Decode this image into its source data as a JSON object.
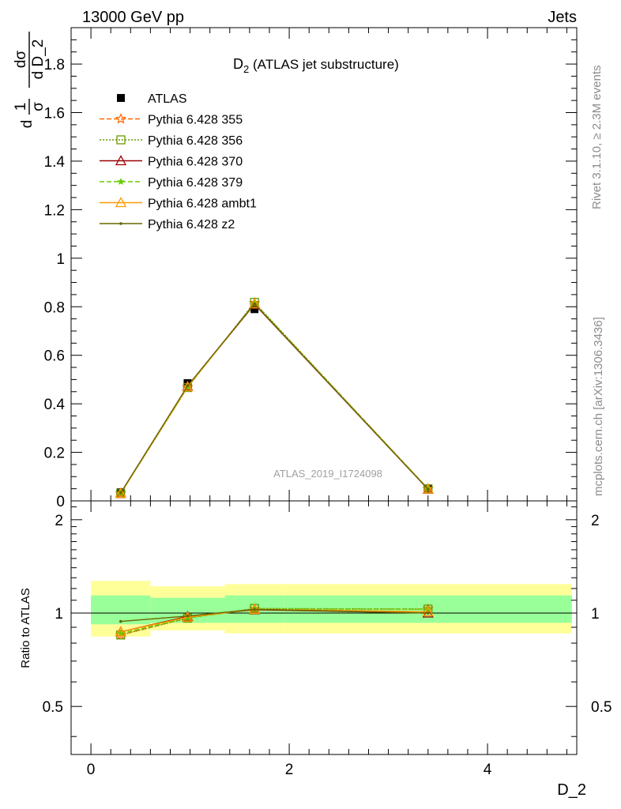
{
  "header": {
    "left": "13000 GeV pp",
    "right": "Jets"
  },
  "side_labels": {
    "rivet": "Rivet 3.1.10, ≥ 2.3M events",
    "mcplots": "mcplots.cern.ch [arXiv:1306.3436]"
  },
  "watermark": "ATLAS_2019_I1724098",
  "colors": {
    "band_inner": "#99ff99",
    "band_outer": "#ffff99",
    "data": "#000000"
  },
  "chart_data": [
    {
      "type": "scatter",
      "panel": "main",
      "title_main": "D",
      "title_sub": "2",
      "title_rest": " (ATLAS jet substructure)",
      "ylabel": "1/σ dσ/d D_2",
      "ylabel_parts": {
        "num_left": "1",
        "den_left": "σ",
        "num_right": "dσ",
        "den_right": "d D_2"
      },
      "xlim": [
        -0.2,
        4.9
      ],
      "ylim": [
        0,
        1.95
      ],
      "y_ticks": [
        "0",
        "0.2",
        "0.4",
        "0.6",
        "0.8",
        "1",
        "1.2",
        "1.4",
        "1.6",
        "1.8"
      ],
      "x": [
        0.3,
        0.975,
        1.65,
        3.4
      ],
      "x_bins": [
        [
          0.0,
          0.6
        ],
        [
          0.6,
          1.35
        ],
        [
          1.35,
          1.95
        ],
        [
          1.95,
          4.85
        ]
      ],
      "legend_placement": "top-left",
      "series": [
        {
          "name": "ATLAS",
          "marker": "square-filled",
          "color": "#000000",
          "dash": "none",
          "values": [
            0.035,
            0.485,
            0.79,
            0.048
          ]
        },
        {
          "name": "Pythia 6.428 355",
          "marker": "star-open",
          "color": "#ff6600",
          "dash": "6,3",
          "values": [
            0.031,
            0.469,
            0.815,
            0.05
          ]
        },
        {
          "name": "Pythia 6.428 356",
          "marker": "square-open",
          "color": "#669900",
          "dash": "2,2",
          "values": [
            0.03,
            0.467,
            0.818,
            0.05
          ]
        },
        {
          "name": "Pythia 6.428 370",
          "marker": "triangle-open",
          "color": "#990000",
          "dash": "none",
          "values": [
            0.031,
            0.472,
            0.81,
            0.048
          ]
        },
        {
          "name": "Pythia 6.428 379",
          "marker": "star-filled",
          "color": "#66cc00",
          "dash": "6,3",
          "values": [
            0.031,
            0.469,
            0.815,
            0.05
          ]
        },
        {
          "name": "Pythia 6.428 ambt1",
          "marker": "triangle-open",
          "color": "#ff9900",
          "dash": "none",
          "values": [
            0.031,
            0.47,
            0.812,
            0.049
          ]
        },
        {
          "name": "Pythia 6.428 z2",
          "marker": "dot",
          "color": "#666600",
          "dash": "none",
          "values": [
            0.033,
            0.474,
            0.812,
            0.048
          ]
        }
      ]
    },
    {
      "type": "line",
      "panel": "ratio",
      "ylabel": "Ratio to ATLAS",
      "xlabel": "D_2",
      "xlim": [
        -0.2,
        4.9
      ],
      "ylim": [
        0.35,
        2.3
      ],
      "x_ticks": [
        "0",
        "2",
        "4"
      ],
      "y_ticks": [
        "0.5",
        "1",
        "2"
      ],
      "reference": 1,
      "bands": [
        {
          "x_range": [
            0.0,
            0.6
          ],
          "inner": [
            0.92,
            1.14
          ],
          "outer": [
            0.84,
            1.27
          ]
        },
        {
          "x_range": [
            0.6,
            1.35
          ],
          "inner": [
            0.93,
            1.12
          ],
          "outer": [
            0.88,
            1.22
          ]
        },
        {
          "x_range": [
            1.35,
            1.95
          ],
          "inner": [
            0.93,
            1.14
          ],
          "outer": [
            0.86,
            1.24
          ]
        },
        {
          "x_range": [
            1.95,
            4.85
          ],
          "inner": [
            0.93,
            1.14
          ],
          "outer": [
            0.86,
            1.24
          ]
        }
      ],
      "x": [
        0.3,
        0.975,
        1.65,
        3.4
      ],
      "series": [
        {
          "name": "Pythia 6.428 355",
          "values": [
            0.85,
            0.965,
            1.03,
            1.03
          ]
        },
        {
          "name": "Pythia 6.428 356",
          "values": [
            0.85,
            0.963,
            1.035,
            1.03
          ]
        },
        {
          "name": "Pythia 6.428 370",
          "values": [
            0.87,
            0.975,
            1.025,
            1.0
          ]
        },
        {
          "name": "Pythia 6.428 379",
          "values": [
            0.86,
            0.965,
            1.03,
            1.03
          ]
        },
        {
          "name": "Pythia 6.428 ambt1",
          "values": [
            0.87,
            0.97,
            1.028,
            1.01
          ]
        },
        {
          "name": "Pythia 6.428 z2",
          "values": [
            0.94,
            0.978,
            1.028,
            1.0
          ]
        }
      ]
    }
  ]
}
